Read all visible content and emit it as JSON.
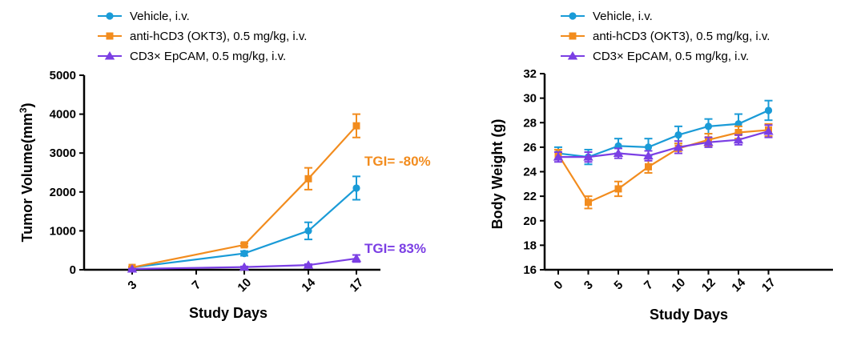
{
  "colors": {
    "vehicle": "#1A9BD7",
    "okt3": "#F28C1E",
    "cd3epcam": "#7B3FE4",
    "axis": "#000000"
  },
  "legend": [
    {
      "key": "vehicle",
      "label": "Vehicle, i.v.",
      "marker": "circle"
    },
    {
      "key": "okt3",
      "label": "anti-hCD3 (OKT3), 0.5 mg/kg, i.v.",
      "marker": "square"
    },
    {
      "key": "cd3epcam",
      "label": "CD3× EpCAM, 0.5 mg/kg, i.v.",
      "marker": "triangle"
    }
  ],
  "chart_data": [
    {
      "type": "line",
      "ylabel_main": "Tumor Volume(mm",
      "ylabel_sup": "3",
      "ylabel_close": ")",
      "xlabel": "Study Days",
      "x_ticks": [
        3,
        7,
        10,
        14,
        17
      ],
      "x_range": [
        0,
        18.5
      ],
      "ylim": [
        0,
        5000
      ],
      "y_ticks": [
        0,
        1000,
        2000,
        3000,
        4000,
        5000
      ],
      "series": [
        {
          "key": "vehicle",
          "name": "Vehicle, i.v.",
          "x": [
            3,
            10,
            14,
            17
          ],
          "y": [
            60,
            420,
            1000,
            2100
          ],
          "err": [
            15,
            60,
            220,
            300
          ]
        },
        {
          "key": "okt3",
          "name": "anti-hCD3 (OKT3), 0.5 mg/kg, i.v.",
          "x": [
            3,
            10,
            14,
            17
          ],
          "y": [
            60,
            640,
            2340,
            3700
          ],
          "err": [
            15,
            40,
            280,
            300
          ]
        },
        {
          "key": "cd3epcam",
          "name": "CD3× EpCAM, 0.5 mg/kg, i.v.",
          "x": [
            3,
            10,
            14,
            17
          ],
          "y": [
            20,
            70,
            120,
            290
          ],
          "err": [
            10,
            15,
            25,
            90
          ]
        }
      ],
      "annotations": [
        {
          "text": "TGI= -80%",
          "color_key": "okt3"
        },
        {
          "text": "TGI= 83%",
          "color_key": "cd3epcam"
        }
      ]
    },
    {
      "type": "line",
      "ylabel_main": "Body Weight (g)",
      "xlabel": "Study Days",
      "x_ticks": [
        0,
        3,
        5,
        7,
        10,
        12,
        14,
        17
      ],
      "ylim": [
        16,
        32
      ],
      "y_ticks": [
        16,
        18,
        20,
        22,
        24,
        26,
        28,
        30,
        32
      ],
      "series": [
        {
          "key": "vehicle",
          "name": "Vehicle, i.v.",
          "y": [
            25.5,
            25.2,
            26.1,
            26.0,
            27.0,
            27.7,
            27.9,
            29.0
          ],
          "err": [
            0.5,
            0.6,
            0.6,
            0.7,
            0.7,
            0.6,
            0.8,
            0.8
          ]
        },
        {
          "key": "okt3",
          "name": "anti-hCD3 (OKT3), 0.5 mg/kg, i.v.",
          "y": [
            25.4,
            21.5,
            22.6,
            24.4,
            25.9,
            26.6,
            27.2,
            27.4
          ],
          "err": [
            0.4,
            0.5,
            0.6,
            0.5,
            0.4,
            0.5,
            0.5,
            0.5
          ]
        },
        {
          "key": "cd3epcam",
          "name": "CD3× EpCAM, 0.5 mg/kg, i.v.",
          "y": [
            25.2,
            25.2,
            25.5,
            25.3,
            26.0,
            26.4,
            26.6,
            27.3
          ],
          "err": [
            0.4,
            0.4,
            0.4,
            0.4,
            0.5,
            0.4,
            0.4,
            0.5
          ]
        }
      ]
    }
  ]
}
